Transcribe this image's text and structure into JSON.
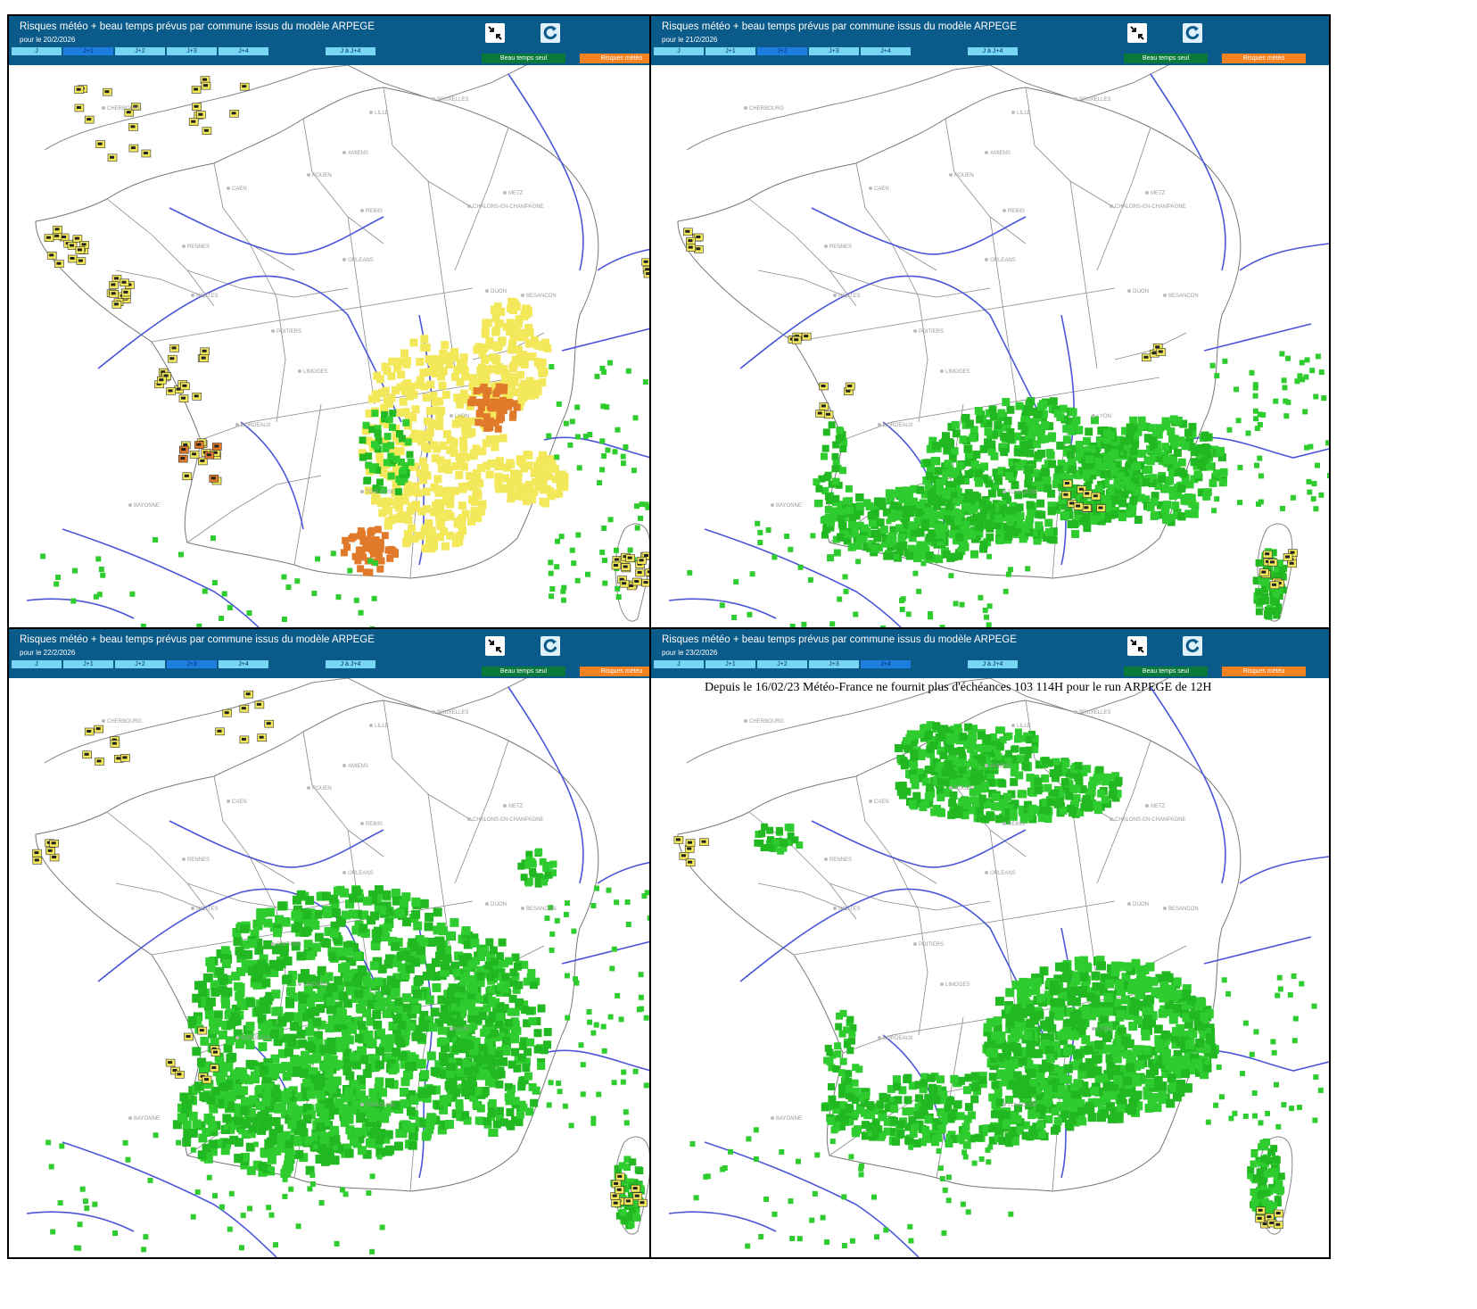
{
  "title": "Risques météo + beau temps prévus par commune issus du modèle ARPEGE",
  "tabs": [
    "J",
    "J+1",
    "J+2",
    "J+3",
    "J+4",
    "J à J+4"
  ],
  "buttons": {
    "beau_temps": "Beau temps seul",
    "risques": "Risques météo"
  },
  "icons": {
    "shrink": "shrink-arrows-icon",
    "refresh": "refresh-icon"
  },
  "colors": {
    "header": "#0a5a8a",
    "tab": "#78d6f5",
    "tab_active": "#1e7ee0",
    "beau_temps": "#0a7a3a",
    "risques": "#f58220",
    "sun": "#2ecc2e",
    "risk_yellow": "#f2e85a",
    "risk_orange": "#e07a2a",
    "rivers": "#4a56d8"
  },
  "cities": [
    "BRUXELLES",
    "LILLE",
    "AMIENS",
    "ROUEN",
    "CAEN",
    "CHERBOURG",
    "REIMS",
    "METZ",
    "CHALONS-EN-CHAMPAGNE",
    "RENNES",
    "ORLEANS",
    "NANTES",
    "DIJON",
    "BESANCON",
    "POITIERS",
    "LIMOGES",
    "BORDEAUX",
    "LYON",
    "TOULOUSE",
    "BAYONNE"
  ],
  "panels": [
    {
      "date": "pour le 20/2/2026",
      "active_tab": 1,
      "notice": ""
    },
    {
      "date": "pour le 21/2/2026",
      "active_tab": 2,
      "notice": ""
    },
    {
      "date": "pour le 22/2/2026",
      "active_tab": 3,
      "notice": ""
    },
    {
      "date": "pour le 23/2/2026",
      "active_tab": 4,
      "notice": "Depuis le 16/02/23 Météo-France ne fournit plus d'échéances 103 114H pour le run ARPEGE de 12H"
    }
  ]
}
